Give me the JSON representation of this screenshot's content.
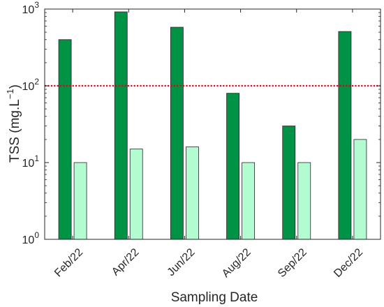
{
  "chart_data": {
    "type": "bar",
    "yscale": "log",
    "xlabel": "Sampling Date",
    "ylabel_main": "TSS (mg.L",
    "ylabel_exp": "−1",
    "ylabel_close": ")",
    "ylim": [
      1,
      1000
    ],
    "y_ticks": [
      {
        "value": 1,
        "base": "10",
        "exp": "0"
      },
      {
        "value": 10,
        "base": "10",
        "exp": "1"
      },
      {
        "value": 100,
        "base": "10",
        "exp": "2"
      },
      {
        "value": 1000,
        "base": "10",
        "exp": "3"
      }
    ],
    "categories": [
      "Feb/22",
      "Apr/22",
      "Jun/22",
      "Aug/22",
      "Sep/22",
      "Dec/22"
    ],
    "series": [
      {
        "values": [
          400,
          920,
          580,
          80,
          30,
          510
        ],
        "color": "#009245"
      },
      {
        "values": [
          10,
          15,
          16,
          10,
          10,
          20
        ],
        "color": "#b3fcd2"
      }
    ],
    "reference_line": {
      "value": 100,
      "color": "#e6001a",
      "style": "dotted"
    },
    "grid": false,
    "legend": "none"
  }
}
